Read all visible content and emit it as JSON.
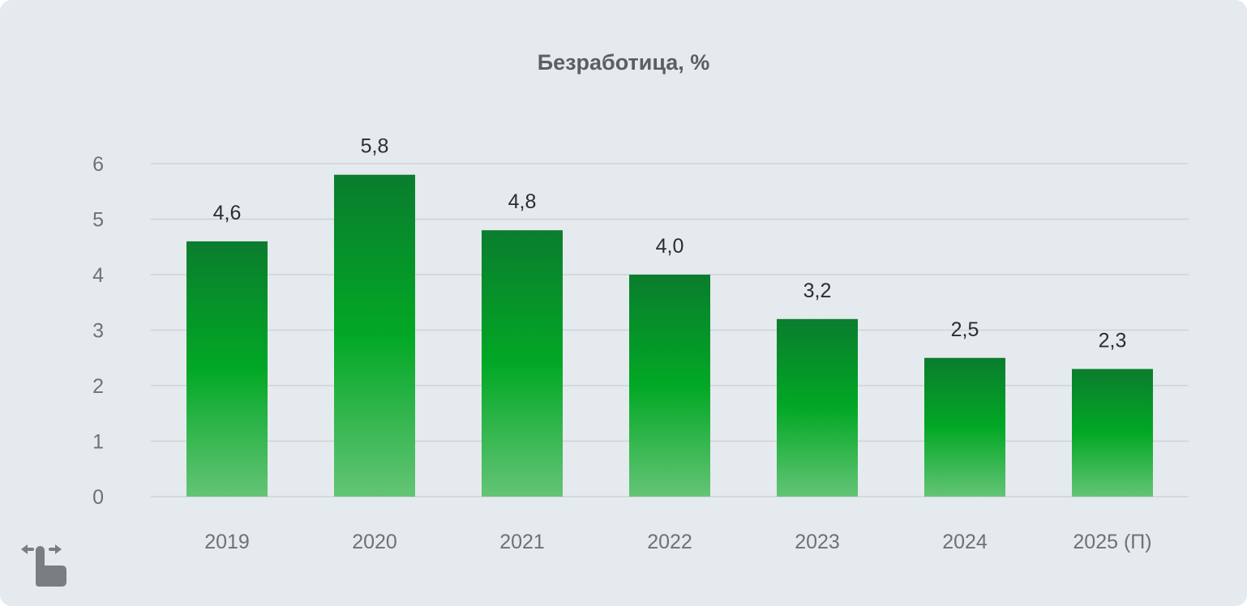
{
  "chart_data": {
    "type": "bar",
    "title": "Безработица, %",
    "categories": [
      "2019",
      "2020",
      "2021",
      "2022",
      "2023",
      "2024",
      "2025 (П)"
    ],
    "values": [
      4.6,
      5.8,
      4.8,
      4.0,
      3.2,
      2.5,
      2.3
    ],
    "value_labels": [
      "4,6",
      "5,8",
      "4,8",
      "4,0",
      "3,2",
      "2,5",
      "2,3"
    ],
    "y_ticks": [
      "0",
      "1",
      "2",
      "3",
      "4",
      "5",
      "6"
    ],
    "ylim": [
      0,
      6
    ],
    "grid": true,
    "colors": {
      "bar_top": "#0a7d2e",
      "bar_mid": "#02a825",
      "bar_bottom": "#64c476",
      "grid": "#cfd3d7",
      "tick_text": "#6e7276",
      "value_text": "#2b2d2f"
    }
  },
  "hint": {
    "icon": "swipe-hand-icon"
  }
}
